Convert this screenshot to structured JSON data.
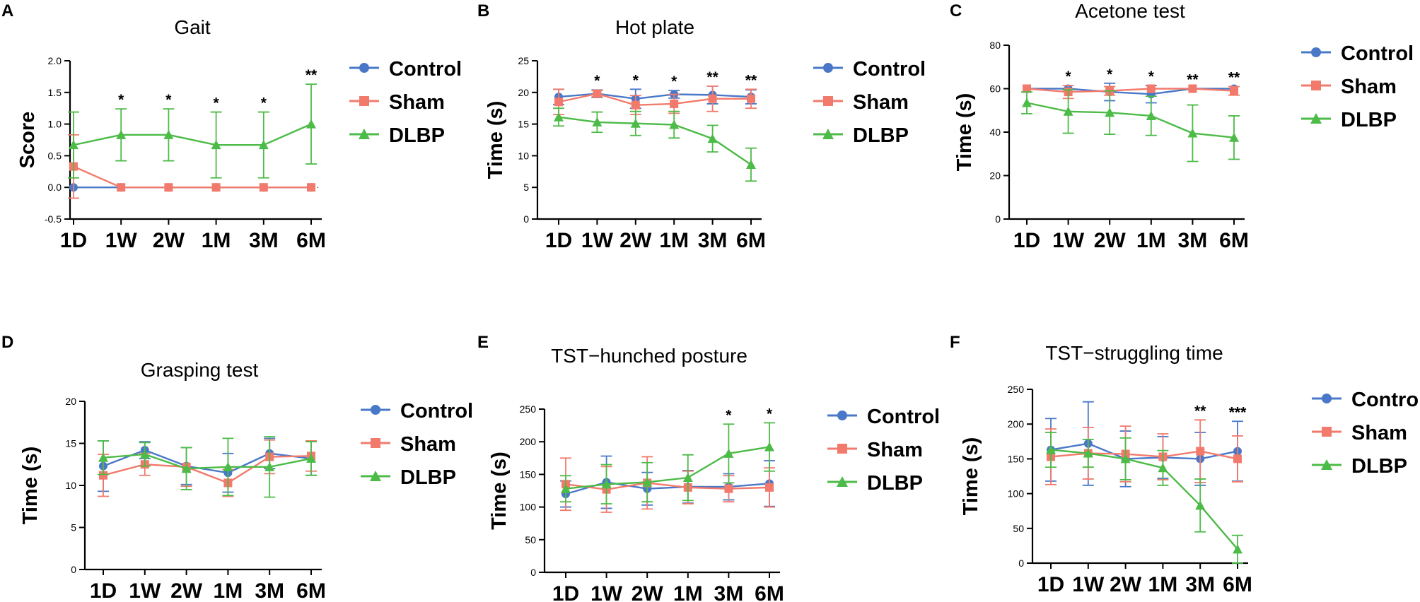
{
  "colors": {
    "Control": "#4a78c8",
    "Sham": "#f27a6c",
    "DLBP": "#4cbb47",
    "axis": "#000000"
  },
  "chart_data": [
    {
      "type": "line",
      "panel": "A",
      "title": "Gait",
      "ylabel": "Score",
      "xlabel": "",
      "categories": [
        "1D",
        "1W",
        "2W",
        "1M",
        "3M",
        "6M"
      ],
      "ylim": [
        -0.5,
        2.0
      ],
      "yticks": [
        "-0.5",
        "0.0",
        "0.5",
        "1.0",
        "1.5",
        "2.0"
      ],
      "zero_line": true,
      "series": [
        {
          "name": "Control",
          "values": [
            0,
            0,
            0,
            0,
            0,
            0
          ],
          "errors": [
            0,
            0,
            0,
            0,
            0,
            0
          ]
        },
        {
          "name": "Sham",
          "values": [
            0.33,
            0,
            0,
            0,
            0,
            0
          ],
          "errors": [
            0.5,
            0,
            0,
            0,
            0,
            0
          ]
        },
        {
          "name": "DLBP",
          "values": [
            0.67,
            0.83,
            0.83,
            0.67,
            0.67,
            1.0
          ],
          "errors": [
            0.52,
            0.41,
            0.41,
            0.52,
            0.52,
            0.63
          ]
        }
      ],
      "annotations": [
        "",
        "*",
        "*",
        "*",
        "*",
        "**"
      ]
    },
    {
      "type": "line",
      "panel": "B",
      "title": "Hot plate",
      "ylabel": "Time (s)",
      "xlabel": "",
      "categories": [
        "1D",
        "1W",
        "2W",
        "1M",
        "3M",
        "6M"
      ],
      "ylim": [
        0,
        25
      ],
      "yticks": [
        "0",
        "5",
        "10",
        "15",
        "20",
        "25"
      ],
      "series": [
        {
          "name": "Control",
          "values": [
            19.3,
            19.8,
            19.0,
            19.7,
            19.6,
            19.3
          ],
          "errors": [
            1.2,
            0.6,
            1.5,
            0.6,
            1.4,
            1.1
          ]
        },
        {
          "name": "Sham",
          "values": [
            18.5,
            19.8,
            18.0,
            18.2,
            19.0,
            19.0
          ],
          "errors": [
            2.0,
            0.5,
            1.5,
            1.5,
            2.0,
            1.5
          ]
        },
        {
          "name": "DLBP",
          "values": [
            16.1,
            15.3,
            15.1,
            14.9,
            12.7,
            8.6
          ],
          "errors": [
            1.4,
            1.6,
            1.9,
            2.1,
            2.1,
            2.6
          ]
        }
      ],
      "annotations": [
        "",
        "*",
        "*",
        "*",
        "**",
        "**"
      ]
    },
    {
      "type": "line",
      "panel": "C",
      "title": "Acetone test",
      "ylabel": "Time (s)",
      "xlabel": "",
      "categories": [
        "1D",
        "1W",
        "2W",
        "1M",
        "3M",
        "6M"
      ],
      "ylim": [
        0,
        80
      ],
      "yticks": [
        "0",
        "20",
        "40",
        "60",
        "80"
      ],
      "series": [
        {
          "name": "Control",
          "values": [
            60,
            60,
            58.5,
            57.5,
            60,
            60
          ],
          "errors": [
            0,
            0,
            4,
            4,
            0,
            0
          ]
        },
        {
          "name": "Sham",
          "values": [
            60,
            58.5,
            59,
            60,
            60,
            59
          ],
          "errors": [
            0,
            3,
            2,
            0,
            0,
            2
          ]
        },
        {
          "name": "DLBP",
          "values": [
            53.5,
            49.5,
            49,
            47.5,
            39.5,
            37.5
          ],
          "errors": [
            5,
            10,
            10,
            9,
            13,
            10
          ]
        }
      ],
      "annotations": [
        "",
        "*",
        "*",
        "*",
        "**",
        "**"
      ]
    },
    {
      "type": "line",
      "panel": "D",
      "title": "Grasping test",
      "ylabel": "Time (s)",
      "xlabel": "",
      "categories": [
        "1D",
        "1W",
        "2W",
        "1M",
        "3M",
        "6M"
      ],
      "ylim": [
        0,
        20
      ],
      "yticks": [
        "0",
        "5",
        "10",
        "15",
        "20"
      ],
      "series": [
        {
          "name": "Control",
          "values": [
            12.3,
            14.2,
            12.3,
            11.5,
            13.8,
            13.2
          ],
          "errors": [
            3.0,
            1.0,
            2.2,
            2.3,
            1.8,
            2.0
          ]
        },
        {
          "name": "Sham",
          "values": [
            11.2,
            12.5,
            12.2,
            10.3,
            13.4,
            13.5
          ],
          "errors": [
            2.5,
            1.3,
            2.3,
            1.6,
            2.0,
            1.8
          ]
        },
        {
          "name": "DLBP",
          "values": [
            13.3,
            13.7,
            12.0,
            12.2,
            12.2,
            13.2
          ],
          "errors": [
            2.0,
            1.4,
            2.5,
            3.4,
            3.6,
            2.0
          ]
        }
      ],
      "annotations": [
        "",
        "",
        "",
        "",
        "",
        ""
      ]
    },
    {
      "type": "line",
      "panel": "E",
      "title": "TST−hunched posture",
      "ylabel": "Time (s)",
      "xlabel": "",
      "categories": [
        "1D",
        "1W",
        "2W",
        "1M",
        "3M",
        "6M"
      ],
      "ylim": [
        0,
        250
      ],
      "yticks": [
        "0",
        "50",
        "100",
        "150",
        "200",
        "250"
      ],
      "series": [
        {
          "name": "Control",
          "values": [
            120,
            138,
            128,
            131,
            131,
            136
          ],
          "errors": [
            20,
            40,
            25,
            25,
            20,
            35
          ]
        },
        {
          "name": "Sham",
          "values": [
            135,
            127,
            137,
            130,
            128,
            130
          ],
          "errors": [
            40,
            35,
            40,
            25,
            20,
            30
          ]
        },
        {
          "name": "DLBP",
          "values": [
            128,
            135,
            138,
            145,
            182,
            192
          ],
          "errors": [
            20,
            30,
            30,
            35,
            45,
            37
          ]
        }
      ],
      "annotations": [
        "",
        "",
        "",
        "",
        "*",
        "*"
      ]
    },
    {
      "type": "line",
      "panel": "F",
      "title": "TST−struggling time",
      "ylabel": "Time (s)",
      "xlabel": "",
      "categories": [
        "1D",
        "1W",
        "2W",
        "1M",
        "3M",
        "6M"
      ],
      "ylim": [
        0,
        250
      ],
      "yticks": [
        "0",
        "50",
        "100",
        "150",
        "200",
        "250"
      ],
      "series": [
        {
          "name": "Control",
          "values": [
            163,
            172,
            150,
            152,
            150,
            161
          ],
          "errors": [
            45,
            60,
            40,
            30,
            38,
            43
          ]
        },
        {
          "name": "Sham",
          "values": [
            153,
            158,
            157,
            153,
            161,
            150
          ],
          "errors": [
            40,
            37,
            40,
            33,
            45,
            33
          ]
        },
        {
          "name": "DLBP",
          "values": [
            163,
            158,
            150,
            137,
            83,
            20
          ],
          "errors": [
            25,
            20,
            30,
            25,
            38,
            20
          ]
        }
      ],
      "annotations": [
        "",
        "",
        "",
        "",
        "**",
        "***"
      ]
    }
  ]
}
